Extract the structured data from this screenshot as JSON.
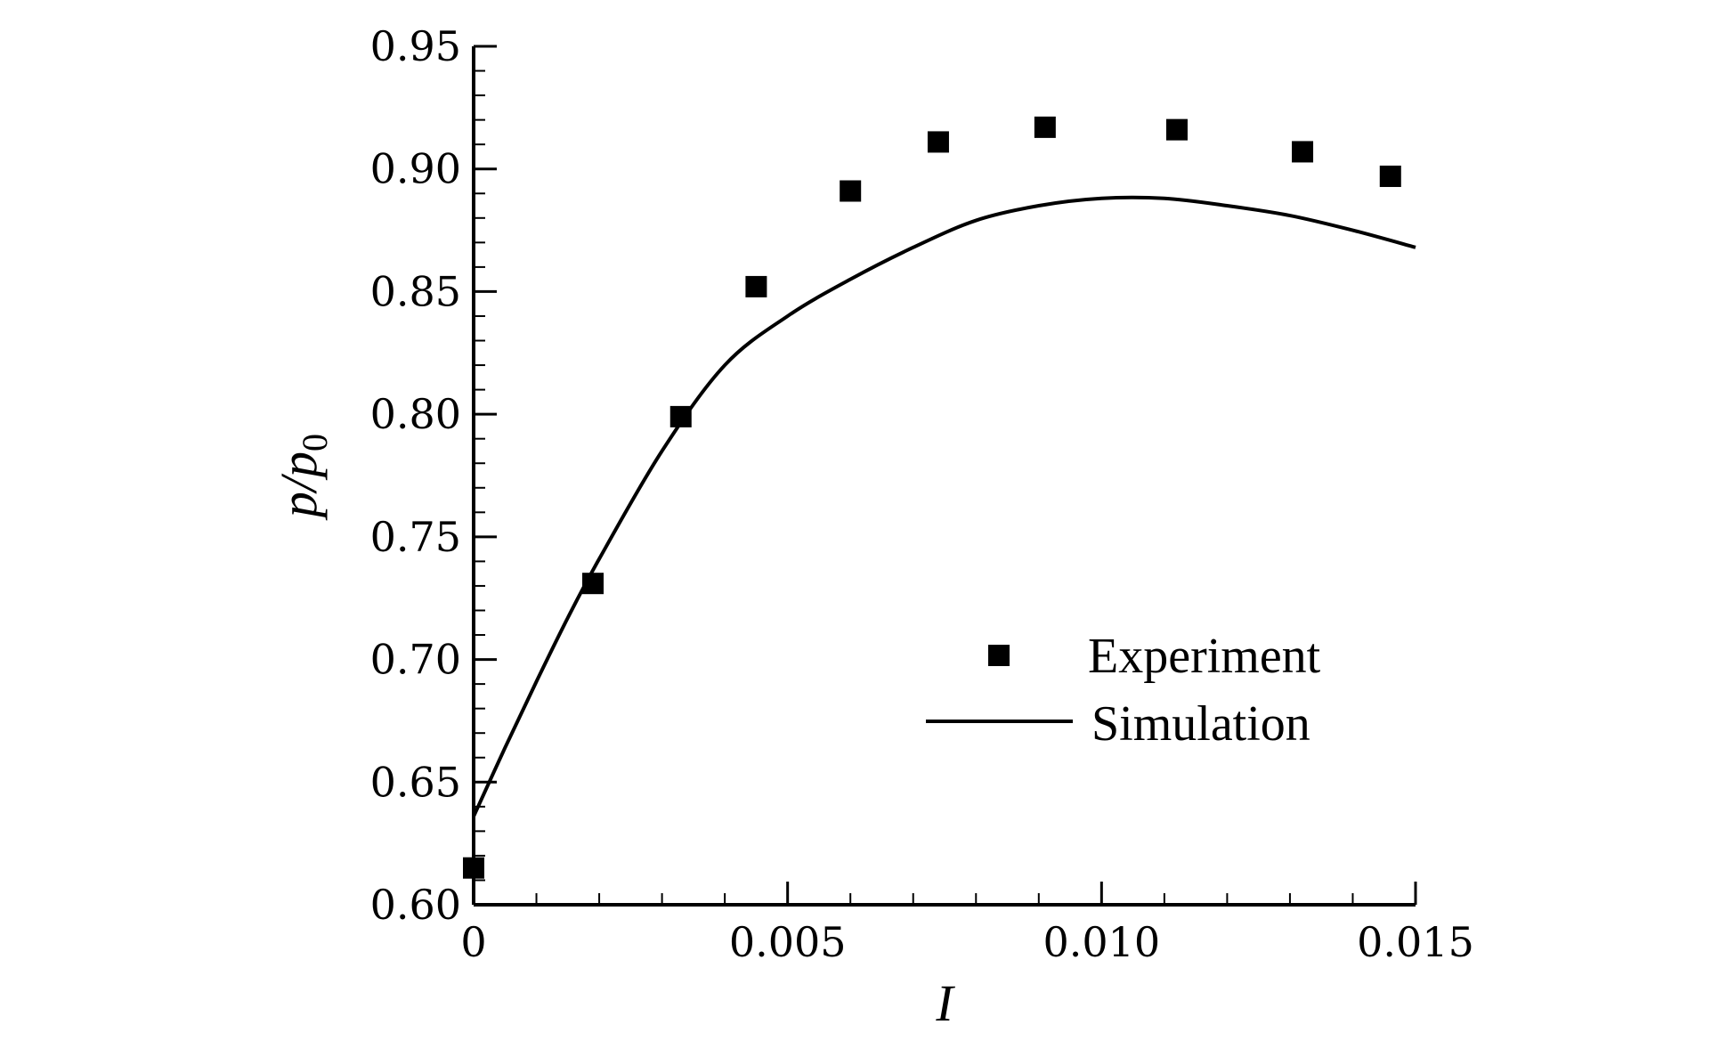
{
  "chart_data": {
    "type": "scatter",
    "title": "",
    "xlabel": "I",
    "ylabel": {
      "main": "p/p",
      "subscript": "0"
    },
    "xlim": [
      0,
      0.015
    ],
    "ylim": [
      0.6,
      0.95
    ],
    "x_ticks": [
      0,
      0.005,
      0.01,
      0.015
    ],
    "x_tick_labels": [
      "0",
      "0.005",
      "0.010",
      "0.015"
    ],
    "x_minor_step": 0.001,
    "y_ticks": [
      0.6,
      0.65,
      0.7,
      0.75,
      0.8,
      0.85,
      0.9,
      0.95
    ],
    "y_tick_labels": [
      "0.60",
      "0.65",
      "0.70",
      "0.75",
      "0.80",
      "0.85",
      "0.90",
      "0.95"
    ],
    "y_minor_step": 0.01,
    "grid": false,
    "legend_position": "bottom-right",
    "colors": {
      "marks": "#000000"
    },
    "series": [
      {
        "name": "Experiment",
        "kind": "markers",
        "marker": "square",
        "x": [
          0.0,
          0.0019,
          0.0033,
          0.0045,
          0.006,
          0.0074,
          0.0091,
          0.0112,
          0.0132,
          0.0146
        ],
        "y": [
          0.615,
          0.731,
          0.799,
          0.852,
          0.891,
          0.911,
          0.917,
          0.916,
          0.907,
          0.897
        ]
      },
      {
        "name": "Simulation",
        "kind": "line",
        "x": [
          0.0,
          0.0005,
          0.001,
          0.0015,
          0.002,
          0.003,
          0.004,
          0.005,
          0.006,
          0.007,
          0.008,
          0.009,
          0.01,
          0.011,
          0.012,
          0.013,
          0.014,
          0.015
        ],
        "y": [
          0.636,
          0.664,
          0.691,
          0.717,
          0.741,
          0.785,
          0.82,
          0.84,
          0.855,
          0.868,
          0.879,
          0.885,
          0.888,
          0.888,
          0.885,
          0.881,
          0.875,
          0.868
        ]
      }
    ]
  }
}
